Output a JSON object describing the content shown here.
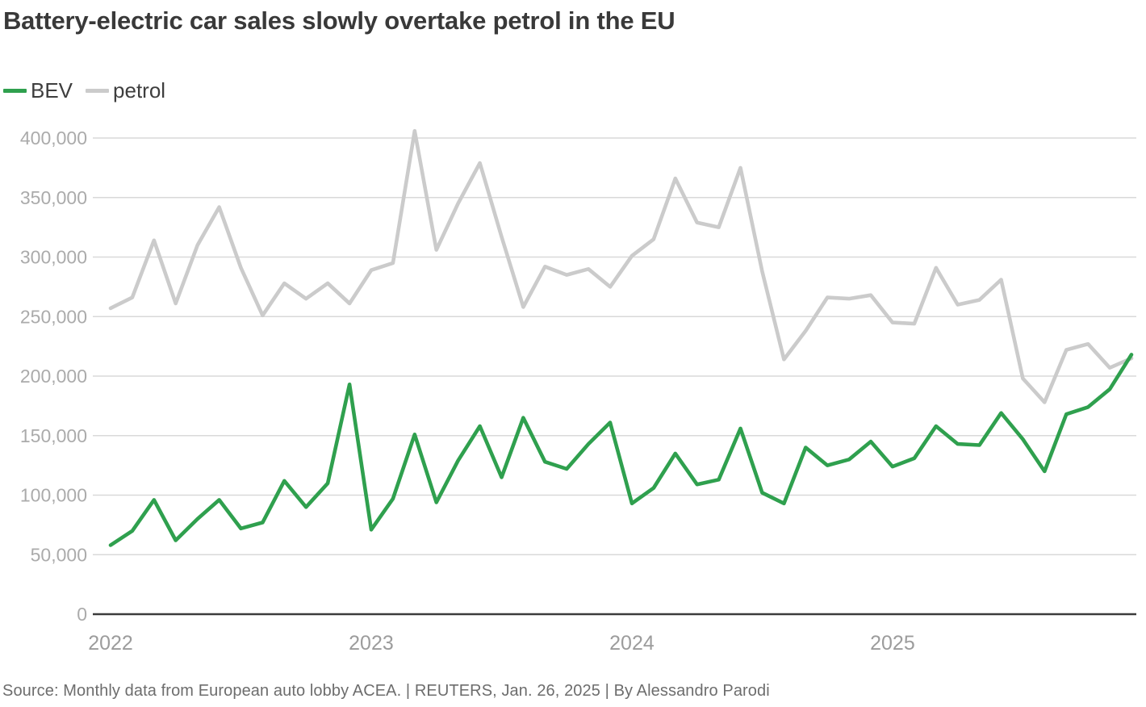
{
  "header": {
    "title": "Battery-electric car sales slowly overtake petrol in the EU"
  },
  "footer": {
    "source_line": "Source: Monthly data from European auto lobby ACEA. | REUTERS, Jan. 26, 2025 | By Alessandro Parodi"
  },
  "colors": {
    "bev_green": "#2fa04e",
    "petrol_gray": "#cbcbcb",
    "grid": "#d9d9d9",
    "axis_baseline": "#3b3b3b",
    "y_tick_text": "#ababab",
    "x_tick_text": "#9c9c9c"
  },
  "chart_data": {
    "type": "line",
    "title": "Battery-electric car sales slowly overtake petrol in the EU",
    "xlabel": "",
    "ylabel": "",
    "grid": "horizontal",
    "legend_position": "top-left",
    "ylim": [
      0,
      414000
    ],
    "x": [
      "Jan 2022",
      "Feb 2022",
      "Mar 2022",
      "Apr 2022",
      "May 2022",
      "Jun 2022",
      "Jul 2022",
      "Aug 2022",
      "Sep 2022",
      "Oct 2022",
      "Nov 2022",
      "Dec 2022",
      "Jan 2023",
      "Feb 2023",
      "Mar 2023",
      "Apr 2023",
      "May 2023",
      "Jun 2023",
      "Jul 2023",
      "Aug 2023",
      "Sep 2023",
      "Oct 2023",
      "Nov 2023",
      "Dec 2023",
      "Jan 2024",
      "Feb 2024",
      "Mar 2024",
      "Apr 2024",
      "May 2024",
      "Jun 2024",
      "Jul 2024",
      "Aug 2024",
      "Sep 2024",
      "Oct 2024",
      "Nov 2024",
      "Dec 2024",
      "Jan 2025",
      "Feb 2025",
      "Mar 2025",
      "Apr 2025",
      "May 2025",
      "Jun 2025",
      "Jul 2025",
      "Aug 2025",
      "Sep 2025",
      "Oct 2025",
      "Nov 2025",
      "Dec 2025"
    ],
    "series": [
      {
        "name": "BEV",
        "color": "#2fa04e",
        "values": [
          58000,
          70000,
          96000,
          62000,
          80000,
          96000,
          72000,
          77000,
          112000,
          90000,
          110000,
          193000,
          71000,
          97000,
          151000,
          94000,
          129000,
          158000,
          115000,
          165000,
          128000,
          122000,
          143000,
          161000,
          93000,
          106000,
          135000,
          109000,
          113000,
          156000,
          102000,
          93000,
          140000,
          125000,
          130000,
          145000,
          124000,
          131000,
          158000,
          143000,
          142000,
          169000,
          147000,
          120000,
          168000,
          174000,
          189000,
          218000
        ]
      },
      {
        "name": "petrol",
        "color": "#cbcbcb",
        "values": [
          257000,
          266000,
          314000,
          261000,
          310000,
          342000,
          291000,
          251000,
          278000,
          265000,
          278000,
          261000,
          289000,
          295000,
          406000,
          306000,
          345000,
          379000,
          317000,
          258000,
          292000,
          285000,
          290000,
          275000,
          301000,
          315000,
          366000,
          329000,
          325000,
          375000,
          288000,
          214000,
          238000,
          266000,
          265000,
          268000,
          245000,
          244000,
          291000,
          260000,
          264000,
          281000,
          198000,
          178000,
          222000,
          227000,
          207000,
          215000
        ]
      }
    ],
    "x_axis": {
      "tick_indices": [
        0,
        12,
        24,
        36
      ],
      "tick_labels": [
        "2022",
        "2023",
        "2024",
        "2025"
      ]
    },
    "y_axis": {
      "ticks": [
        0,
        50000,
        100000,
        150000,
        200000,
        250000,
        300000,
        350000,
        400000
      ],
      "tick_labels": [
        "0",
        "50,000",
        "100,000",
        "150,000",
        "200,000",
        "250,000",
        "300,000",
        "350,000",
        "400,000"
      ]
    }
  }
}
